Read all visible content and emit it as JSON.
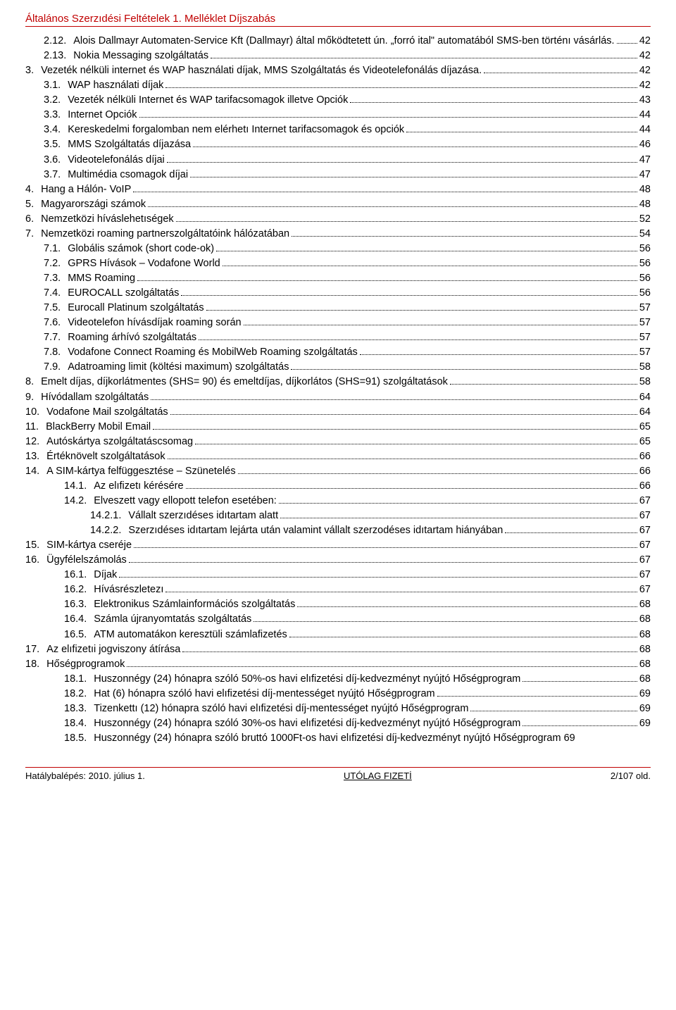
{
  "header": "Általános Szerzıdési Feltételek 1. Melléklet Díjszabás",
  "header_color": "#c00000",
  "toc": [
    {
      "indent": 1,
      "num": "2.12.",
      "label": "Alois Dallmayr Automaten-Service Kft (Dallmayr) által mőködtetett ún. „forró ital\" automatából SMS-ben történı vásárlás.",
      "page": "42"
    },
    {
      "indent": 1,
      "num": "2.13.",
      "label": "Nokia Messaging szolgáltatás",
      "page": "42"
    },
    {
      "indent": 0,
      "num": "3.",
      "label": "Vezeték nélküli internet és WAP használati díjak, MMS Szolgáltatás és Videotelefonálás díjazása.",
      "page": "42"
    },
    {
      "indent": 1,
      "num": "3.1.",
      "label": "WAP használati díjak",
      "page": "42"
    },
    {
      "indent": 1,
      "num": "3.2.",
      "label": "Vezeték nélküli Internet és WAP tarifacsomagok illetve Opciók",
      "page": "43"
    },
    {
      "indent": 1,
      "num": "3.3.",
      "label": "Internet Opciók",
      "page": "44"
    },
    {
      "indent": 1,
      "num": "3.4.",
      "label": "Kereskedelmi forgalomban nem elérhetı Internet tarifacsomagok és opciók",
      "page": "44"
    },
    {
      "indent": 1,
      "num": "3.5.",
      "label": "MMS Szolgáltatás díjazása",
      "page": "46"
    },
    {
      "indent": 1,
      "num": "3.6.",
      "label": "Videotelefonálás díjai",
      "page": "47"
    },
    {
      "indent": 1,
      "num": "3.7.",
      "label": "Multimédia csomagok díjai",
      "page": "47"
    },
    {
      "indent": 0,
      "num": "4.",
      "label": "Hang a Hálón- VoIP",
      "page": "48"
    },
    {
      "indent": 0,
      "num": "5.",
      "label": "Magyarországi számok",
      "page": "48"
    },
    {
      "indent": 0,
      "num": "6.",
      "label": "Nemzetközi híváslehetıségek",
      "page": "52"
    },
    {
      "indent": 0,
      "num": "7.",
      "label": "Nemzetközi roaming partnerszolgáltatóink hálózatában",
      "page": "54"
    },
    {
      "indent": 1,
      "num": "7.1.",
      "label": "Globális számok (short code-ok)",
      "page": "56"
    },
    {
      "indent": 1,
      "num": "7.2.",
      "label": "GPRS Hívások – Vodafone World",
      "page": "56"
    },
    {
      "indent": 1,
      "num": "7.3.",
      "label": "MMS Roaming",
      "page": "56"
    },
    {
      "indent": 1,
      "num": "7.4.",
      "label": "EUROCALL szolgáltatás",
      "page": "56"
    },
    {
      "indent": 1,
      "num": "7.5.",
      "label": "Eurocall Platinum szolgáltatás",
      "page": "57"
    },
    {
      "indent": 1,
      "num": "7.6.",
      "label": "Videotelefon hívásdíjak roaming során",
      "page": "57"
    },
    {
      "indent": 1,
      "num": "7.7.",
      "label": "Roaming árhívó szolgáltatás",
      "page": "57"
    },
    {
      "indent": 1,
      "num": "7.8.",
      "label": "Vodafone Connect Roaming és MobilWeb Roaming szolgáltatás",
      "page": "57"
    },
    {
      "indent": 1,
      "num": "7.9.",
      "label": "Adatroaming limit (költési maximum) szolgáltatás",
      "page": "58"
    },
    {
      "indent": 0,
      "num": "8.",
      "label": "Emelt díjas, díjkorlátmentes (SHS= 90) és emeltdíjas, díjkorlátos (SHS=91) szolgáltatások",
      "page": "58"
    },
    {
      "indent": 0,
      "num": "9.",
      "label": "Hívódallam szolgáltatás",
      "page": "64"
    },
    {
      "indent": 0,
      "num": "10.",
      "label": "Vodafone Mail szolgáltatás",
      "page": "64"
    },
    {
      "indent": 0,
      "num": "11.",
      "label": "BlackBerry Mobil Email",
      "page": "65"
    },
    {
      "indent": 0,
      "num": "12.",
      "label": "Autóskártya szolgáltatáscsomag",
      "page": "65"
    },
    {
      "indent": 0,
      "num": "13.",
      "label": "Értéknövelt szolgáltatások",
      "page": "66"
    },
    {
      "indent": 0,
      "num": "14.",
      "label": "A SIM-kártya felfüggesztése – Szünetelés",
      "page": "66"
    },
    {
      "indent": 2,
      "num": "14.1.",
      "label": "Az elıfizetı kérésére",
      "page": "66"
    },
    {
      "indent": 2,
      "num": "14.2.",
      "label": "Elveszett vagy ellopott telefon esetében:",
      "page": "67"
    },
    {
      "indent": 4,
      "num": "14.2.1.",
      "label": "Vállalt szerzıdéses idıtartam alatt",
      "page": "67"
    },
    {
      "indent": 4,
      "num": "14.2.2.",
      "label": "Szerzıdéses idıtartam lejárta után valamint vállalt szerzodéses idıtartam hiányában",
      "page": "67"
    },
    {
      "indent": 0,
      "num": "15.",
      "label": "SIM-kártya cseréje",
      "page": "67"
    },
    {
      "indent": 0,
      "num": "16.",
      "label": "Ügyfélelszámolás",
      "page": "67"
    },
    {
      "indent": 2,
      "num": "16.1.",
      "label": "Díjak",
      "page": "67"
    },
    {
      "indent": 2,
      "num": "16.2.",
      "label": "Hívásrészletezı",
      "page": "67"
    },
    {
      "indent": 2,
      "num": "16.3.",
      "label": "Elektronikus Számlainformációs szolgáltatás",
      "page": "68"
    },
    {
      "indent": 2,
      "num": "16.4.",
      "label": "Számla újranyomtatás szolgáltatás",
      "page": "68"
    },
    {
      "indent": 2,
      "num": "16.5.",
      "label": "ATM automatákon keresztüli számlafizetés",
      "page": "68"
    },
    {
      "indent": 0,
      "num": "17.",
      "label": "Az elıfizetıi jogviszony átírása",
      "page": "68"
    },
    {
      "indent": 0,
      "num": "18.",
      "label": "Hőségprogramok",
      "page": "68"
    },
    {
      "indent": 2,
      "num": "18.1.",
      "label": "Huszonnégy (24) hónapra szóló 50%-os havi elıfizetési díj-kedvezményt nyújtó Hőségprogram",
      "page": "68"
    },
    {
      "indent": 2,
      "num": "18.2.",
      "label": "Hat (6) hónapra szóló havi elıfizetési díj-mentességet nyújtó Hőségprogram",
      "page": "69"
    },
    {
      "indent": 2,
      "num": "18.3.",
      "label": "Tizenkettı (12) hónapra szóló havi elıfizetési díj-mentességet nyújtó Hőségprogram",
      "page": "69"
    },
    {
      "indent": 2,
      "num": "18.4.",
      "label": "Huszonnégy (24) hónapra szóló 30%-os havi elıfizetési díj-kedvezményt nyújtó Hőségprogram",
      "page": "69"
    },
    {
      "indent": 2,
      "num": "18.5.",
      "label": "Huszonnégy (24) hónapra szóló bruttó 1000Ft-os havi elıfizetési díj-kedvezményt nyújtó Hőségprogram 69",
      "page": ""
    }
  ],
  "footer": {
    "left": "Hatálybalépés: 2010. július 1.",
    "mid": "UTÓLAG FIZETİ",
    "right": "2/107 old."
  }
}
